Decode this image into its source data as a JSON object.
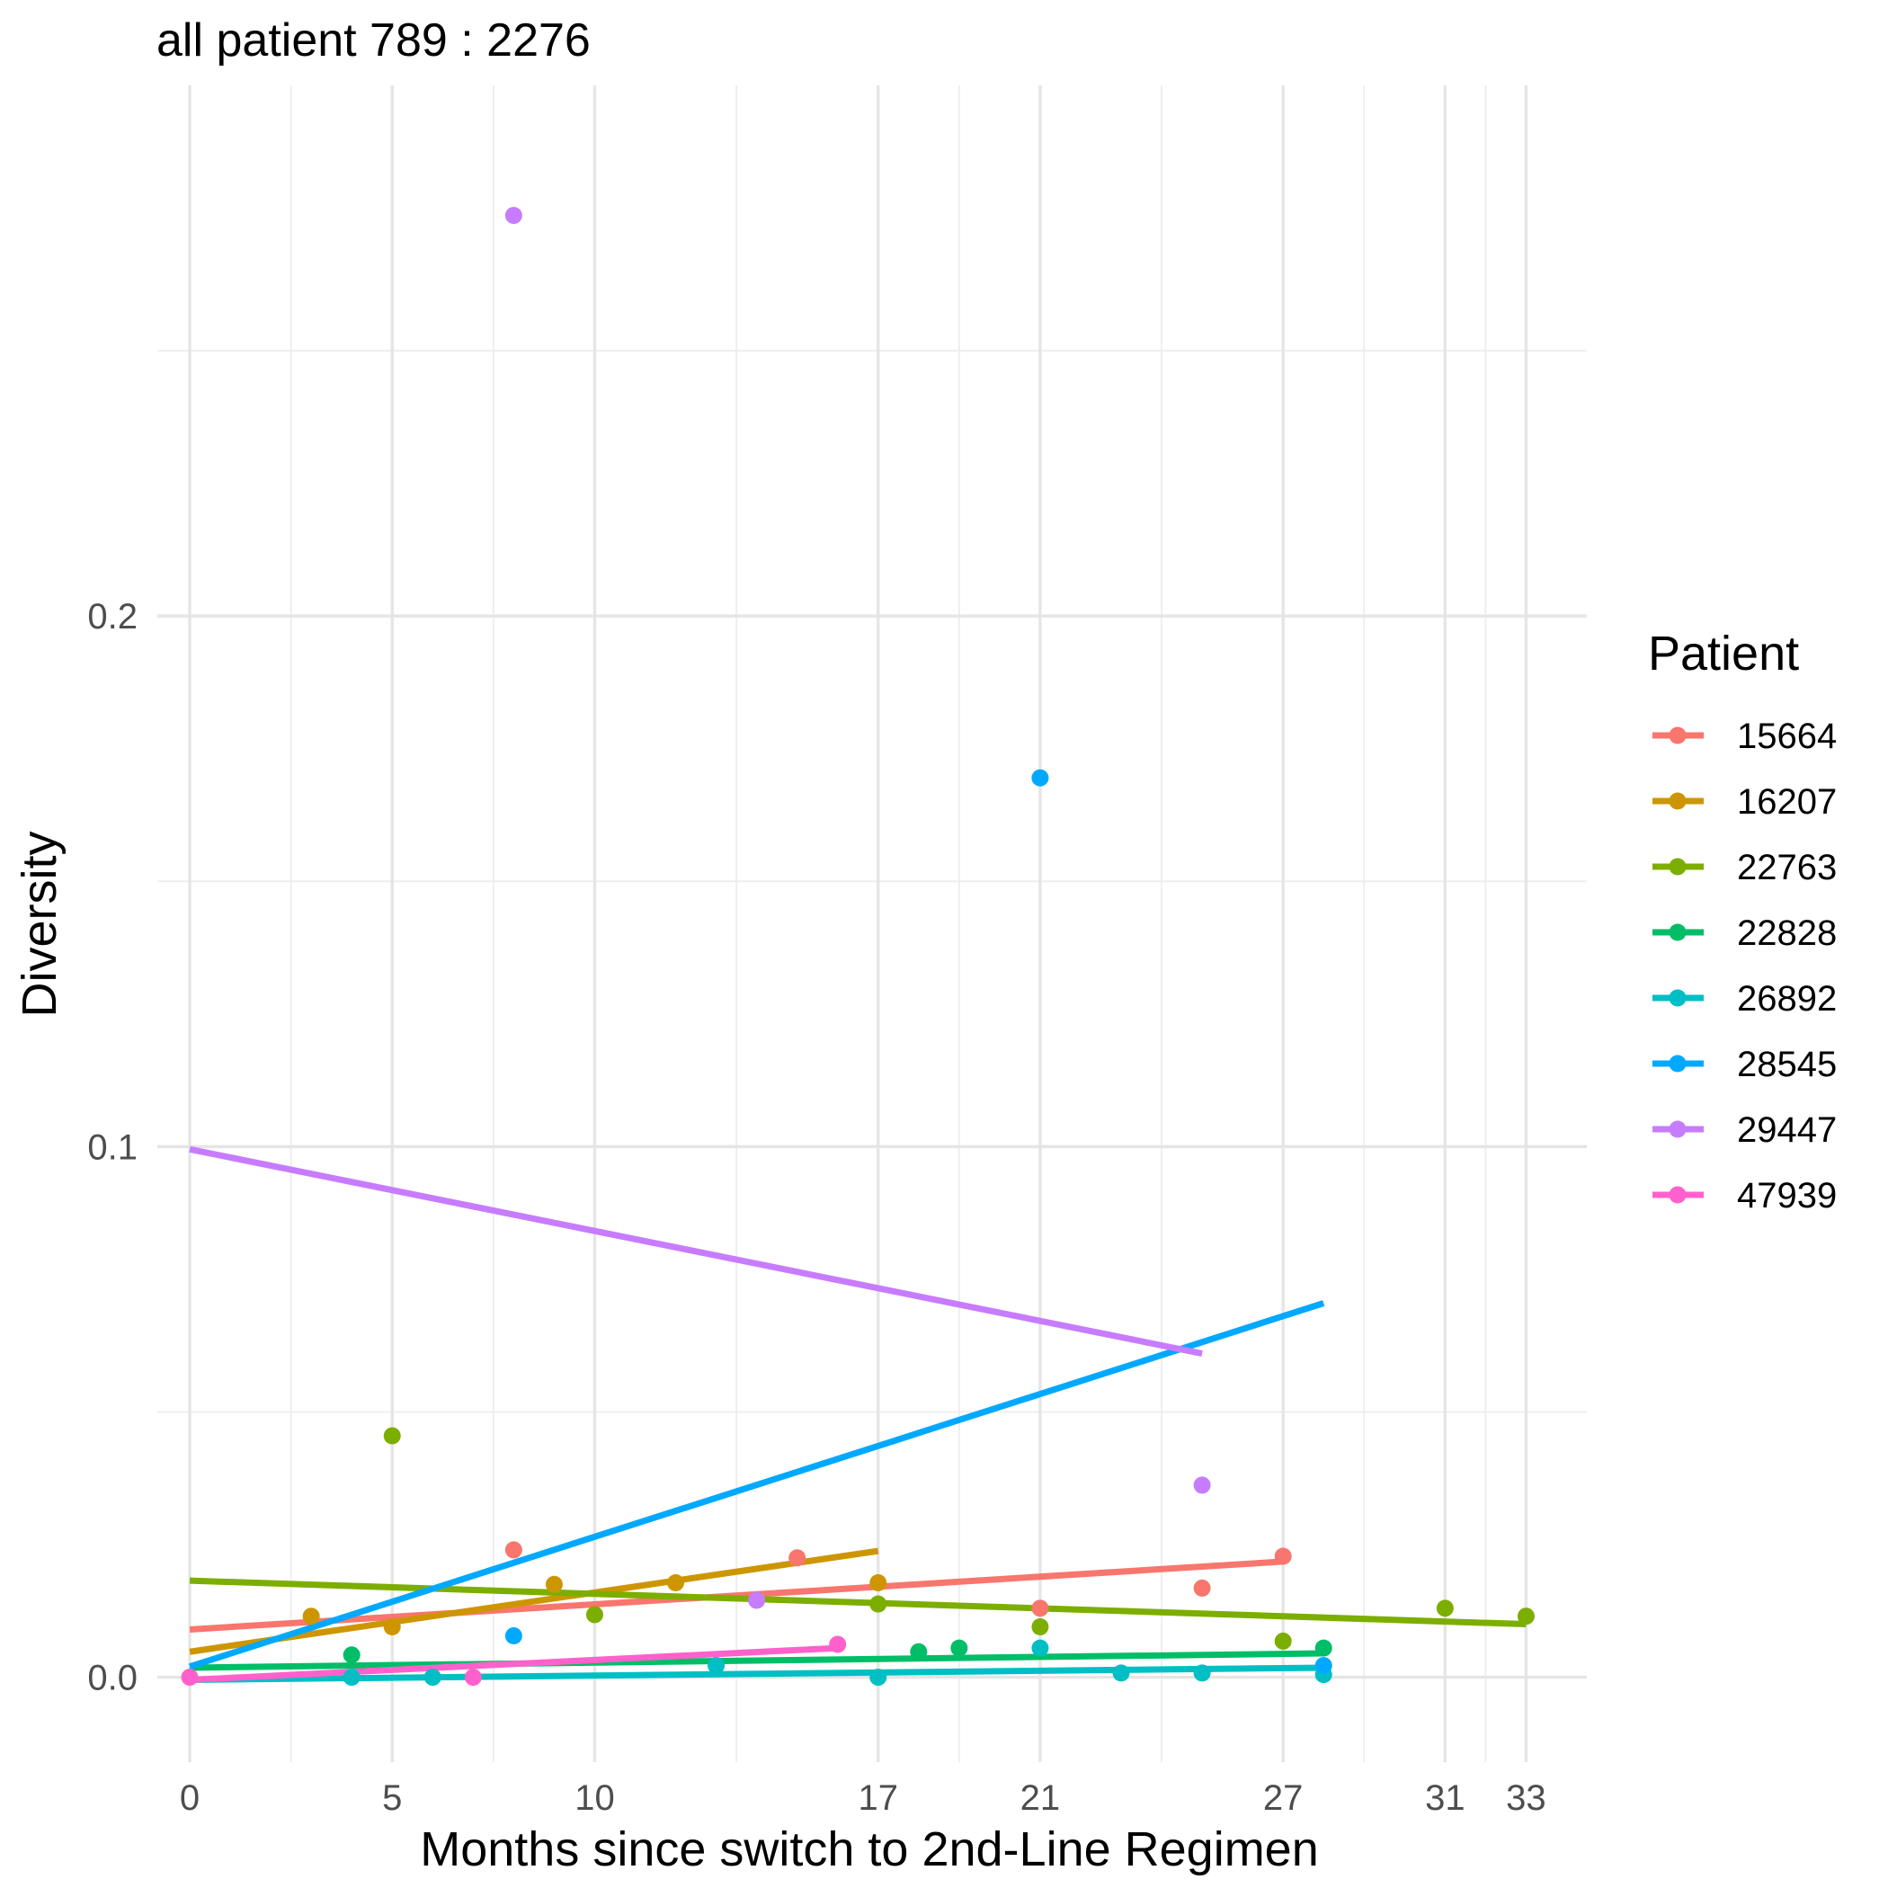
{
  "chart_data": {
    "type": "scatter",
    "title": "all patient 789 : 2276",
    "xlabel": "Months since switch to 2nd-Line Regimen",
    "ylabel": "Diversity",
    "xlim": [
      -0.8,
      34.5
    ],
    "ylim": [
      -0.016,
      0.3
    ],
    "x_ticks": [
      0,
      5,
      10,
      17,
      21,
      27,
      31,
      33
    ],
    "x_minor_grid": [
      2.5,
      7.5,
      13.5,
      19,
      24,
      29,
      32
    ],
    "y_ticks": [
      0.0,
      0.1,
      0.2
    ],
    "y_tick_labels": [
      "0.0",
      "0.1",
      "0.2"
    ],
    "y_minor_grid": [
      0.05,
      0.15,
      0.25
    ],
    "grid": true,
    "legend": {
      "title": "Patient",
      "position": "right"
    },
    "series": [
      {
        "name": "15664",
        "color": "#F8766D",
        "points": [
          [
            8,
            0.024
          ],
          [
            15,
            0.0225
          ],
          [
            21,
            0.013
          ],
          [
            25,
            0.0168
          ],
          [
            27,
            0.0228
          ]
        ],
        "fit": [
          [
            0,
            0.009
          ],
          [
            27,
            0.0218
          ]
        ]
      },
      {
        "name": "16207",
        "color": "#CD9600",
        "points": [
          [
            3,
            0.0115
          ],
          [
            5,
            0.0095
          ],
          [
            9,
            0.0175
          ],
          [
            12,
            0.0178
          ],
          [
            17,
            0.0178
          ]
        ],
        "fit": [
          [
            0,
            0.0048
          ],
          [
            17,
            0.0238
          ]
        ]
      },
      {
        "name": "22763",
        "color": "#7CAE00",
        "points": [
          [
            5,
            0.0455
          ],
          [
            10,
            0.0118
          ],
          [
            17,
            0.0138
          ],
          [
            21,
            0.0095
          ],
          [
            27,
            0.0068
          ],
          [
            31,
            0.013
          ],
          [
            33,
            0.0115
          ]
        ],
        "fit": [
          [
            0,
            0.0182
          ],
          [
            33,
            0.01
          ]
        ]
      },
      {
        "name": "22828",
        "color": "#00BE67",
        "points": [
          [
            4,
            0.0042
          ],
          [
            18,
            0.0048
          ],
          [
            19,
            0.0055
          ],
          [
            28,
            0.0055
          ]
        ],
        "fit": [
          [
            0,
            0.0018
          ],
          [
            28,
            0.0045
          ]
        ]
      },
      {
        "name": "26892",
        "color": "#00BFC4",
        "points": [
          [
            4,
            0.0
          ],
          [
            6,
            0.0
          ],
          [
            13,
            0.0022
          ],
          [
            17,
            0.0
          ],
          [
            21,
            0.0055
          ],
          [
            23,
            0.0008
          ],
          [
            25,
            0.0008
          ],
          [
            28,
            0.0005
          ]
        ],
        "fit": [
          [
            0,
            -0.0005
          ],
          [
            28,
            0.0018
          ]
        ]
      },
      {
        "name": "28545",
        "color": "#00A9FF",
        "points": [
          [
            8,
            0.0078
          ],
          [
            21,
            0.1695
          ],
          [
            28,
            0.0022
          ]
        ],
        "fit": [
          [
            0,
            0.002
          ],
          [
            28,
            0.0705
          ]
        ]
      },
      {
        "name": "29447",
        "color": "#C77CFF",
        "points": [
          [
            8,
            0.2755
          ],
          [
            14,
            0.0145
          ],
          [
            25,
            0.0362
          ]
        ],
        "fit": [
          [
            0,
            0.0995
          ],
          [
            25,
            0.061
          ]
        ]
      },
      {
        "name": "47939",
        "color": "#FF61CC",
        "points": [
          [
            0,
            0.0
          ],
          [
            7,
            0.0
          ],
          [
            16,
            0.0062
          ]
        ],
        "fit": [
          [
            0,
            -0.0005
          ],
          [
            16,
            0.0055
          ]
        ]
      }
    ]
  }
}
